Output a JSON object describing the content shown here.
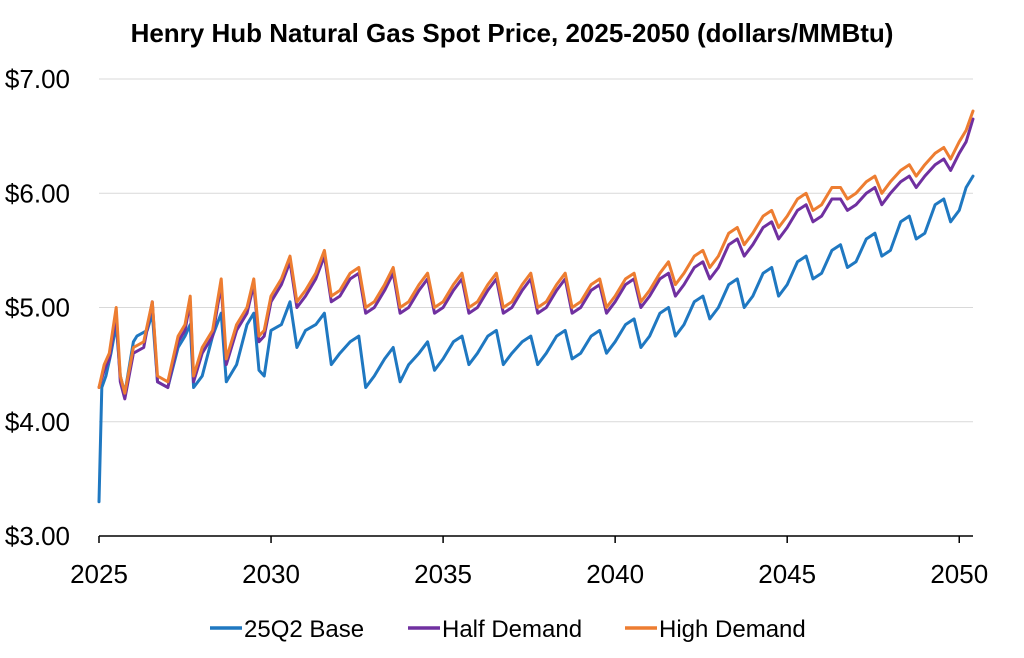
{
  "chart_data": {
    "type": "line",
    "title": "Henry Hub Natural Gas Spot Price, 2025-2050 (dollars/MMBtu)",
    "xlabel": "",
    "ylabel": "",
    "xlim": [
      2025,
      2050.4
    ],
    "ylim": [
      3.0,
      7.0
    ],
    "x_ticks": [
      "2025",
      "2030",
      "2035",
      "2040",
      "2045",
      "2050"
    ],
    "y_ticks": [
      "$3.00",
      "$4.00",
      "$5.00",
      "$6.00",
      "$7.00"
    ],
    "grid": "horizontal",
    "legend_position": "bottom",
    "series": [
      {
        "name": "25Q2 Base",
        "color": "#1f78c1",
        "x": [
          2025.0,
          2025.08,
          2025.2,
          2025.35,
          2025.5,
          2025.62,
          2025.75,
          2026.0,
          2026.1,
          2026.4,
          2026.55,
          2026.7,
          2027.0,
          2027.3,
          2027.5,
          2027.65,
          2027.75,
          2028.0,
          2028.3,
          2028.55,
          2028.7,
          2029.0,
          2029.3,
          2029.5,
          2029.65,
          2029.8,
          2030.0,
          2030.3,
          2030.55,
          2030.75,
          2031.0,
          2031.3,
          2031.55,
          2031.75,
          2032.0,
          2032.3,
          2032.55,
          2032.75,
          2033.0,
          2033.3,
          2033.55,
          2033.75,
          2034.0,
          2034.3,
          2034.55,
          2034.75,
          2035.0,
          2035.3,
          2035.55,
          2035.75,
          2036.0,
          2036.3,
          2036.55,
          2036.75,
          2037.0,
          2037.3,
          2037.55,
          2037.75,
          2038.0,
          2038.3,
          2038.55,
          2038.75,
          2039.0,
          2039.3,
          2039.55,
          2039.75,
          2040.0,
          2040.3,
          2040.55,
          2040.75,
          2041.0,
          2041.3,
          2041.55,
          2041.75,
          2042.0,
          2042.3,
          2042.55,
          2042.75,
          2043.0,
          2043.3,
          2043.55,
          2043.75,
          2044.0,
          2044.3,
          2044.55,
          2044.75,
          2045.0,
          2045.3,
          2045.55,
          2045.75,
          2046.0,
          2046.3,
          2046.55,
          2046.75,
          2047.0,
          2047.3,
          2047.55,
          2047.75,
          2048.0,
          2048.3,
          2048.55,
          2048.75,
          2049.0,
          2049.3,
          2049.55,
          2049.75,
          2050.0,
          2050.2,
          2050.4
        ],
        "values": [
          3.3,
          4.3,
          4.4,
          4.6,
          4.85,
          4.4,
          4.25,
          4.7,
          4.75,
          4.8,
          4.95,
          4.35,
          4.3,
          4.65,
          4.75,
          4.85,
          4.3,
          4.4,
          4.75,
          4.95,
          4.35,
          4.5,
          4.85,
          4.95,
          4.45,
          4.4,
          4.8,
          4.85,
          5.05,
          4.65,
          4.8,
          4.85,
          4.95,
          4.5,
          4.6,
          4.7,
          4.75,
          4.3,
          4.4,
          4.55,
          4.65,
          4.35,
          4.5,
          4.6,
          4.7,
          4.45,
          4.55,
          4.7,
          4.75,
          4.5,
          4.6,
          4.75,
          4.8,
          4.5,
          4.6,
          4.7,
          4.75,
          4.5,
          4.6,
          4.75,
          4.8,
          4.55,
          4.6,
          4.75,
          4.8,
          4.6,
          4.7,
          4.85,
          4.9,
          4.65,
          4.75,
          4.95,
          5.0,
          4.75,
          4.85,
          5.05,
          5.1,
          4.9,
          5.0,
          5.2,
          5.25,
          5.0,
          5.1,
          5.3,
          5.35,
          5.1,
          5.2,
          5.4,
          5.45,
          5.25,
          5.3,
          5.5,
          5.55,
          5.35,
          5.4,
          5.6,
          5.65,
          5.45,
          5.5,
          5.75,
          5.8,
          5.6,
          5.65,
          5.9,
          5.95,
          5.75,
          5.85,
          6.05,
          6.15
        ]
      },
      {
        "name": "Half Demand",
        "color": "#7030a0",
        "x": [
          2025.0,
          2025.15,
          2025.3,
          2025.5,
          2025.62,
          2025.75,
          2026.0,
          2026.3,
          2026.55,
          2026.7,
          2027.0,
          2027.3,
          2027.5,
          2027.65,
          2027.75,
          2028.0,
          2028.3,
          2028.55,
          2028.7,
          2029.0,
          2029.3,
          2029.5,
          2029.65,
          2029.8,
          2030.0,
          2030.3,
          2030.55,
          2030.75,
          2031.0,
          2031.3,
          2031.55,
          2031.75,
          2032.0,
          2032.3,
          2032.55,
          2032.75,
          2033.0,
          2033.3,
          2033.55,
          2033.75,
          2034.0,
          2034.3,
          2034.55,
          2034.75,
          2035.0,
          2035.3,
          2035.55,
          2035.75,
          2036.0,
          2036.3,
          2036.55,
          2036.75,
          2037.0,
          2037.3,
          2037.55,
          2037.75,
          2038.0,
          2038.3,
          2038.55,
          2038.75,
          2039.0,
          2039.3,
          2039.55,
          2039.75,
          2040.0,
          2040.3,
          2040.55,
          2040.75,
          2041.0,
          2041.3,
          2041.55,
          2041.75,
          2042.0,
          2042.3,
          2042.55,
          2042.75,
          2043.0,
          2043.3,
          2043.55,
          2043.75,
          2044.0,
          2044.3,
          2044.55,
          2044.75,
          2045.0,
          2045.3,
          2045.55,
          2045.75,
          2046.0,
          2046.3,
          2046.55,
          2046.75,
          2047.0,
          2047.3,
          2047.55,
          2047.75,
          2048.0,
          2048.3,
          2048.55,
          2048.75,
          2049.0,
          2049.3,
          2049.55,
          2049.75,
          2050.0,
          2050.2,
          2050.4
        ],
        "values": [
          4.3,
          4.45,
          4.55,
          4.95,
          4.35,
          4.2,
          4.6,
          4.65,
          5.05,
          4.35,
          4.3,
          4.7,
          4.8,
          5.05,
          4.35,
          4.6,
          4.75,
          5.2,
          4.5,
          4.8,
          4.95,
          5.2,
          4.7,
          4.75,
          5.05,
          5.2,
          5.4,
          5.0,
          5.1,
          5.25,
          5.45,
          5.05,
          5.1,
          5.25,
          5.3,
          4.95,
          5.0,
          5.15,
          5.3,
          4.95,
          5.0,
          5.15,
          5.25,
          4.95,
          5.0,
          5.15,
          5.25,
          4.95,
          5.0,
          5.15,
          5.25,
          4.95,
          5.0,
          5.15,
          5.25,
          4.95,
          5.0,
          5.15,
          5.25,
          4.95,
          5.0,
          5.15,
          5.2,
          4.95,
          5.05,
          5.2,
          5.25,
          5.0,
          5.1,
          5.25,
          5.3,
          5.1,
          5.2,
          5.35,
          5.4,
          5.25,
          5.35,
          5.55,
          5.6,
          5.45,
          5.55,
          5.7,
          5.75,
          5.6,
          5.7,
          5.85,
          5.9,
          5.75,
          5.8,
          5.95,
          5.95,
          5.85,
          5.9,
          6.0,
          6.05,
          5.9,
          6.0,
          6.1,
          6.15,
          6.05,
          6.15,
          6.25,
          6.3,
          6.2,
          6.35,
          6.45,
          6.65
        ]
      },
      {
        "name": "High Demand",
        "color": "#ed7d31",
        "x": [
          2025.0,
          2025.15,
          2025.3,
          2025.5,
          2025.62,
          2025.75,
          2026.0,
          2026.3,
          2026.55,
          2026.7,
          2027.0,
          2027.3,
          2027.5,
          2027.65,
          2027.75,
          2028.0,
          2028.3,
          2028.55,
          2028.7,
          2029.0,
          2029.3,
          2029.5,
          2029.65,
          2029.8,
          2030.0,
          2030.3,
          2030.55,
          2030.75,
          2031.0,
          2031.3,
          2031.55,
          2031.75,
          2032.0,
          2032.3,
          2032.55,
          2032.75,
          2033.0,
          2033.3,
          2033.55,
          2033.75,
          2034.0,
          2034.3,
          2034.55,
          2034.75,
          2035.0,
          2035.3,
          2035.55,
          2035.75,
          2036.0,
          2036.3,
          2036.55,
          2036.75,
          2037.0,
          2037.3,
          2037.55,
          2037.75,
          2038.0,
          2038.3,
          2038.55,
          2038.75,
          2039.0,
          2039.3,
          2039.55,
          2039.75,
          2040.0,
          2040.3,
          2040.55,
          2040.75,
          2041.0,
          2041.3,
          2041.55,
          2041.75,
          2042.0,
          2042.3,
          2042.55,
          2042.75,
          2043.0,
          2043.3,
          2043.55,
          2043.75,
          2044.0,
          2044.3,
          2044.55,
          2044.75,
          2045.0,
          2045.3,
          2045.55,
          2045.75,
          2046.0,
          2046.3,
          2046.55,
          2046.75,
          2047.0,
          2047.3,
          2047.55,
          2047.75,
          2048.0,
          2048.3,
          2048.55,
          2048.75,
          2049.0,
          2049.3,
          2049.55,
          2049.75,
          2050.0,
          2050.2,
          2050.4
        ],
        "values": [
          4.3,
          4.5,
          4.6,
          5.0,
          4.4,
          4.25,
          4.65,
          4.7,
          5.05,
          4.4,
          4.35,
          4.75,
          4.85,
          5.1,
          4.4,
          4.65,
          4.8,
          5.25,
          4.55,
          4.85,
          5.0,
          5.25,
          4.75,
          4.8,
          5.1,
          5.25,
          5.45,
          5.05,
          5.15,
          5.3,
          5.5,
          5.1,
          5.15,
          5.3,
          5.35,
          5.0,
          5.05,
          5.2,
          5.35,
          5.0,
          5.05,
          5.2,
          5.3,
          5.0,
          5.05,
          5.2,
          5.3,
          5.0,
          5.05,
          5.2,
          5.3,
          5.0,
          5.05,
          5.2,
          5.3,
          5.0,
          5.05,
          5.2,
          5.3,
          5.0,
          5.05,
          5.2,
          5.25,
          5.0,
          5.1,
          5.25,
          5.3,
          5.05,
          5.15,
          5.3,
          5.4,
          5.2,
          5.3,
          5.45,
          5.5,
          5.35,
          5.45,
          5.65,
          5.7,
          5.55,
          5.65,
          5.8,
          5.85,
          5.7,
          5.8,
          5.95,
          6.0,
          5.85,
          5.9,
          6.05,
          6.05,
          5.95,
          6.0,
          6.1,
          6.15,
          6.0,
          6.1,
          6.2,
          6.25,
          6.15,
          6.25,
          6.35,
          6.4,
          6.3,
          6.45,
          6.55,
          6.72
        ]
      }
    ]
  }
}
